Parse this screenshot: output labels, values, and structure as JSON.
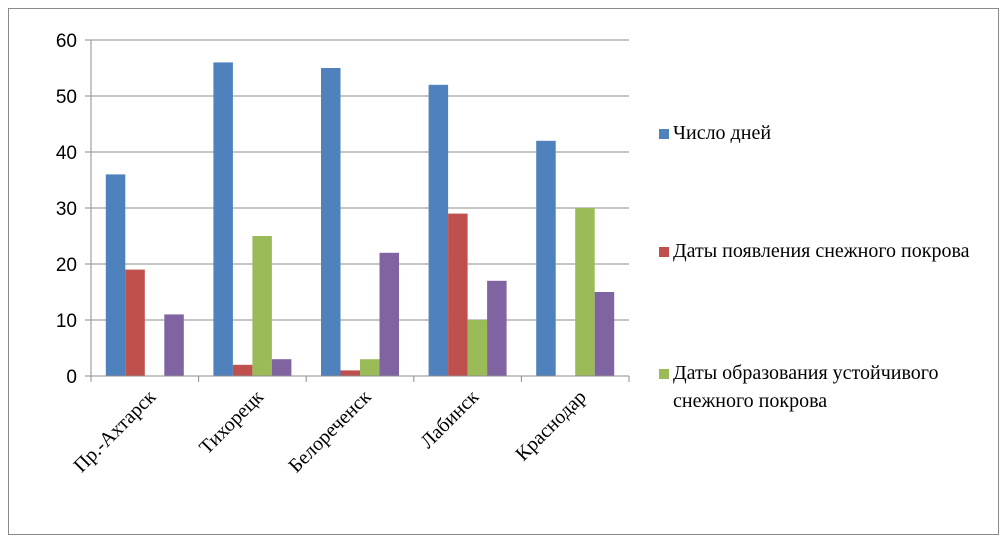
{
  "chart_data": {
    "type": "bar",
    "categories": [
      "Пр.-Ахтарск",
      "Тихорецк",
      "Белореченск",
      "Лабинск",
      "Краснодар"
    ],
    "series": [
      {
        "name": "Число дней",
        "color": "#4f81bd",
        "values": [
          36,
          56,
          55,
          52,
          42
        ]
      },
      {
        "name": "Даты появления снежного покрова",
        "color": "#c0504d",
        "values": [
          19,
          2,
          1,
          29,
          0
        ]
      },
      {
        "name": "Даты образования устойчивого снежного покрова",
        "color": "#9bbb59",
        "values": [
          0,
          25,
          3,
          10,
          30
        ]
      },
      {
        "name": "",
        "color": "#8064a2",
        "values": [
          11,
          3,
          22,
          17,
          15
        ]
      }
    ],
    "ylim": [
      0,
      60
    ],
    "yticks": [
      0,
      10,
      20,
      30,
      40,
      50,
      60
    ],
    "grid": true,
    "legend_position": "right",
    "title": "",
    "xlabel": "",
    "ylabel": ""
  }
}
